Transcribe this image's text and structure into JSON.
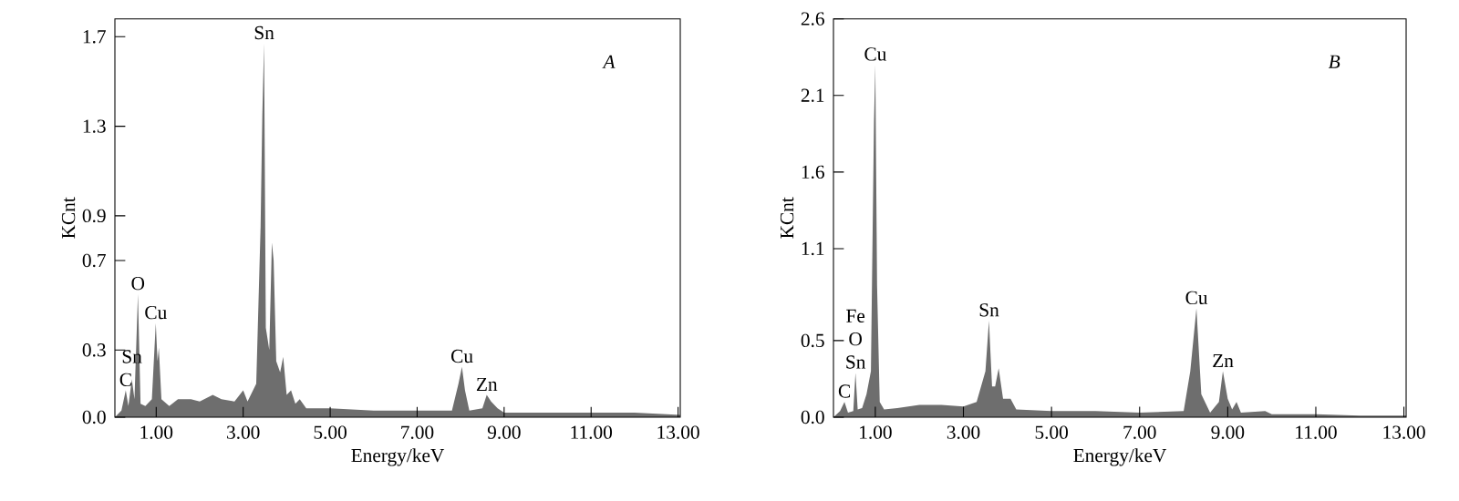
{
  "chart_data": [
    {
      "type": "area",
      "xlabel": "Energy/keV",
      "ylabel": "KCnt",
      "color": "#6e6e6e",
      "xlim": [
        0.05,
        13.05
      ],
      "ylim": [
        0,
        1.78
      ],
      "xticks": [
        {
          "value": 1,
          "label": "1.00"
        },
        {
          "value": 3,
          "label": "3.00"
        },
        {
          "value": 5,
          "label": "5.00"
        },
        {
          "value": 7,
          "label": "7.00"
        },
        {
          "value": 9,
          "label": "9.00"
        },
        {
          "value": 11,
          "label": "11.00"
        },
        {
          "value": 13,
          "label": "13.00"
        }
      ],
      "yticks": [
        {
          "value": 0,
          "label": "0.0"
        },
        0.3,
        0.7,
        0.9,
        1.3,
        1.7
      ],
      "x": [
        0.05,
        0.2,
        0.3,
        0.36,
        0.44,
        0.5,
        0.58,
        0.64,
        0.75,
        0.9,
        0.99,
        1.03,
        1.06,
        1.12,
        1.3,
        1.5,
        1.8,
        2.0,
        2.3,
        2.5,
        2.8,
        3.0,
        3.1,
        3.3,
        3.4,
        3.44,
        3.48,
        3.52,
        3.6,
        3.66,
        3.7,
        3.76,
        3.85,
        3.92,
        4.0,
        4.1,
        4.2,
        4.3,
        4.45,
        5.0,
        6.0,
        7.0,
        7.8,
        7.95,
        8.03,
        8.1,
        8.2,
        8.5,
        8.6,
        8.7,
        8.85,
        9.0,
        10.0,
        11.0,
        12.0,
        13.05
      ],
      "values": [
        0,
        0.03,
        0.12,
        0.05,
        0.17,
        0.08,
        0.55,
        0.06,
        0.05,
        0.08,
        0.42,
        0.25,
        0.31,
        0.08,
        0.05,
        0.08,
        0.08,
        0.07,
        0.1,
        0.08,
        0.07,
        0.12,
        0.07,
        0.15,
        0.85,
        1.35,
        1.67,
        0.4,
        0.3,
        0.78,
        0.7,
        0.25,
        0.2,
        0.27,
        0.1,
        0.12,
        0.06,
        0.08,
        0.04,
        0.04,
        0.03,
        0.03,
        0.03,
        0.15,
        0.225,
        0.12,
        0.03,
        0.04,
        0.1,
        0.07,
        0.04,
        0.02,
        0.02,
        0.02,
        0.02,
        0.01
      ],
      "annotations": [
        {
          "text": "Sn",
          "x": 3.48,
          "y": 1.67
        },
        {
          "text": "O",
          "x": 0.58,
          "y": 0.55
        },
        {
          "text": "Cu",
          "x": 0.99,
          "y": 0.42
        },
        {
          "text": "Sn",
          "x": 0.44,
          "y": 0.17
        },
        {
          "text": "C",
          "x": 0.3,
          "y": 0.12
        },
        {
          "text": "Cu",
          "x": 8.03,
          "y": 0.225
        },
        {
          "text": "Zn",
          "x": 8.6,
          "y": 0.1
        },
        "A"
      ]
    },
    {
      "type": "area",
      "xlabel": "Energy/keV",
      "ylabel": "KCnt",
      "color": "#6e6e6e",
      "xlim": [
        0.05,
        13.05
      ],
      "ylim": [
        0,
        2.6
      ],
      "xticks": [
        {
          "value": 1,
          "label": "1.00"
        },
        {
          "value": 3,
          "label": "3.00"
        },
        {
          "value": 5,
          "label": "5.00"
        },
        {
          "value": 7,
          "label": "7.00"
        },
        {
          "value": 9,
          "label": "9.00"
        },
        {
          "value": 11,
          "label": "11.00"
        },
        {
          "value": 13,
          "label": "13.00"
        }
      ],
      "yticks": [
        {
          "value": 0,
          "label": "0.0"
        },
        0.5,
        1.1,
        1.6,
        2.1,
        2.6
      ],
      "x": [
        0.05,
        0.2,
        0.3,
        0.38,
        0.5,
        0.55,
        0.6,
        0.7,
        0.8,
        0.9,
        0.97,
        1.0,
        1.04,
        1.1,
        1.2,
        1.5,
        2.0,
        2.5,
        3.0,
        3.3,
        3.5,
        3.58,
        3.65,
        3.72,
        3.8,
        3.9,
        4.07,
        4.2,
        5.0,
        6.0,
        7.0,
        8.0,
        8.15,
        8.29,
        8.4,
        8.6,
        8.8,
        8.89,
        9.0,
        9.1,
        9.2,
        9.3,
        9.85,
        10.0,
        11.0,
        12.0,
        13.05
      ],
      "values": [
        0,
        0.04,
        0.1,
        0.03,
        0.04,
        0.29,
        0.05,
        0.06,
        0.15,
        0.3,
        1.93,
        2.3,
        0.86,
        0.1,
        0.05,
        0.06,
        0.08,
        0.08,
        0.07,
        0.1,
        0.3,
        0.63,
        0.2,
        0.2,
        0.32,
        0.12,
        0.12,
        0.05,
        0.04,
        0.04,
        0.03,
        0.04,
        0.3,
        0.71,
        0.15,
        0.03,
        0.1,
        0.3,
        0.12,
        0.05,
        0.1,
        0.03,
        0.04,
        0.02,
        0.02,
        0.01,
        0.01
      ],
      "annotations": [
        {
          "text": "Cu",
          "x": 1.0,
          "y": 2.3
        },
        {
          "text": "Fe",
          "x": 0.55,
          "y": 0.29
        },
        {
          "text": "O",
          "x": 0.55,
          "y": 0.29
        },
        {
          "text": "Sn",
          "x": 0.55,
          "y": 0.29
        },
        {
          "text": "C",
          "x": 0.3,
          "y": 0.1
        },
        {
          "text": "Sn",
          "x": 3.58,
          "y": 0.63
        },
        {
          "text": "Cu",
          "x": 8.29,
          "y": 0.71
        },
        {
          "text": "Zn",
          "x": 8.89,
          "y": 0.3
        },
        "B"
      ]
    }
  ]
}
